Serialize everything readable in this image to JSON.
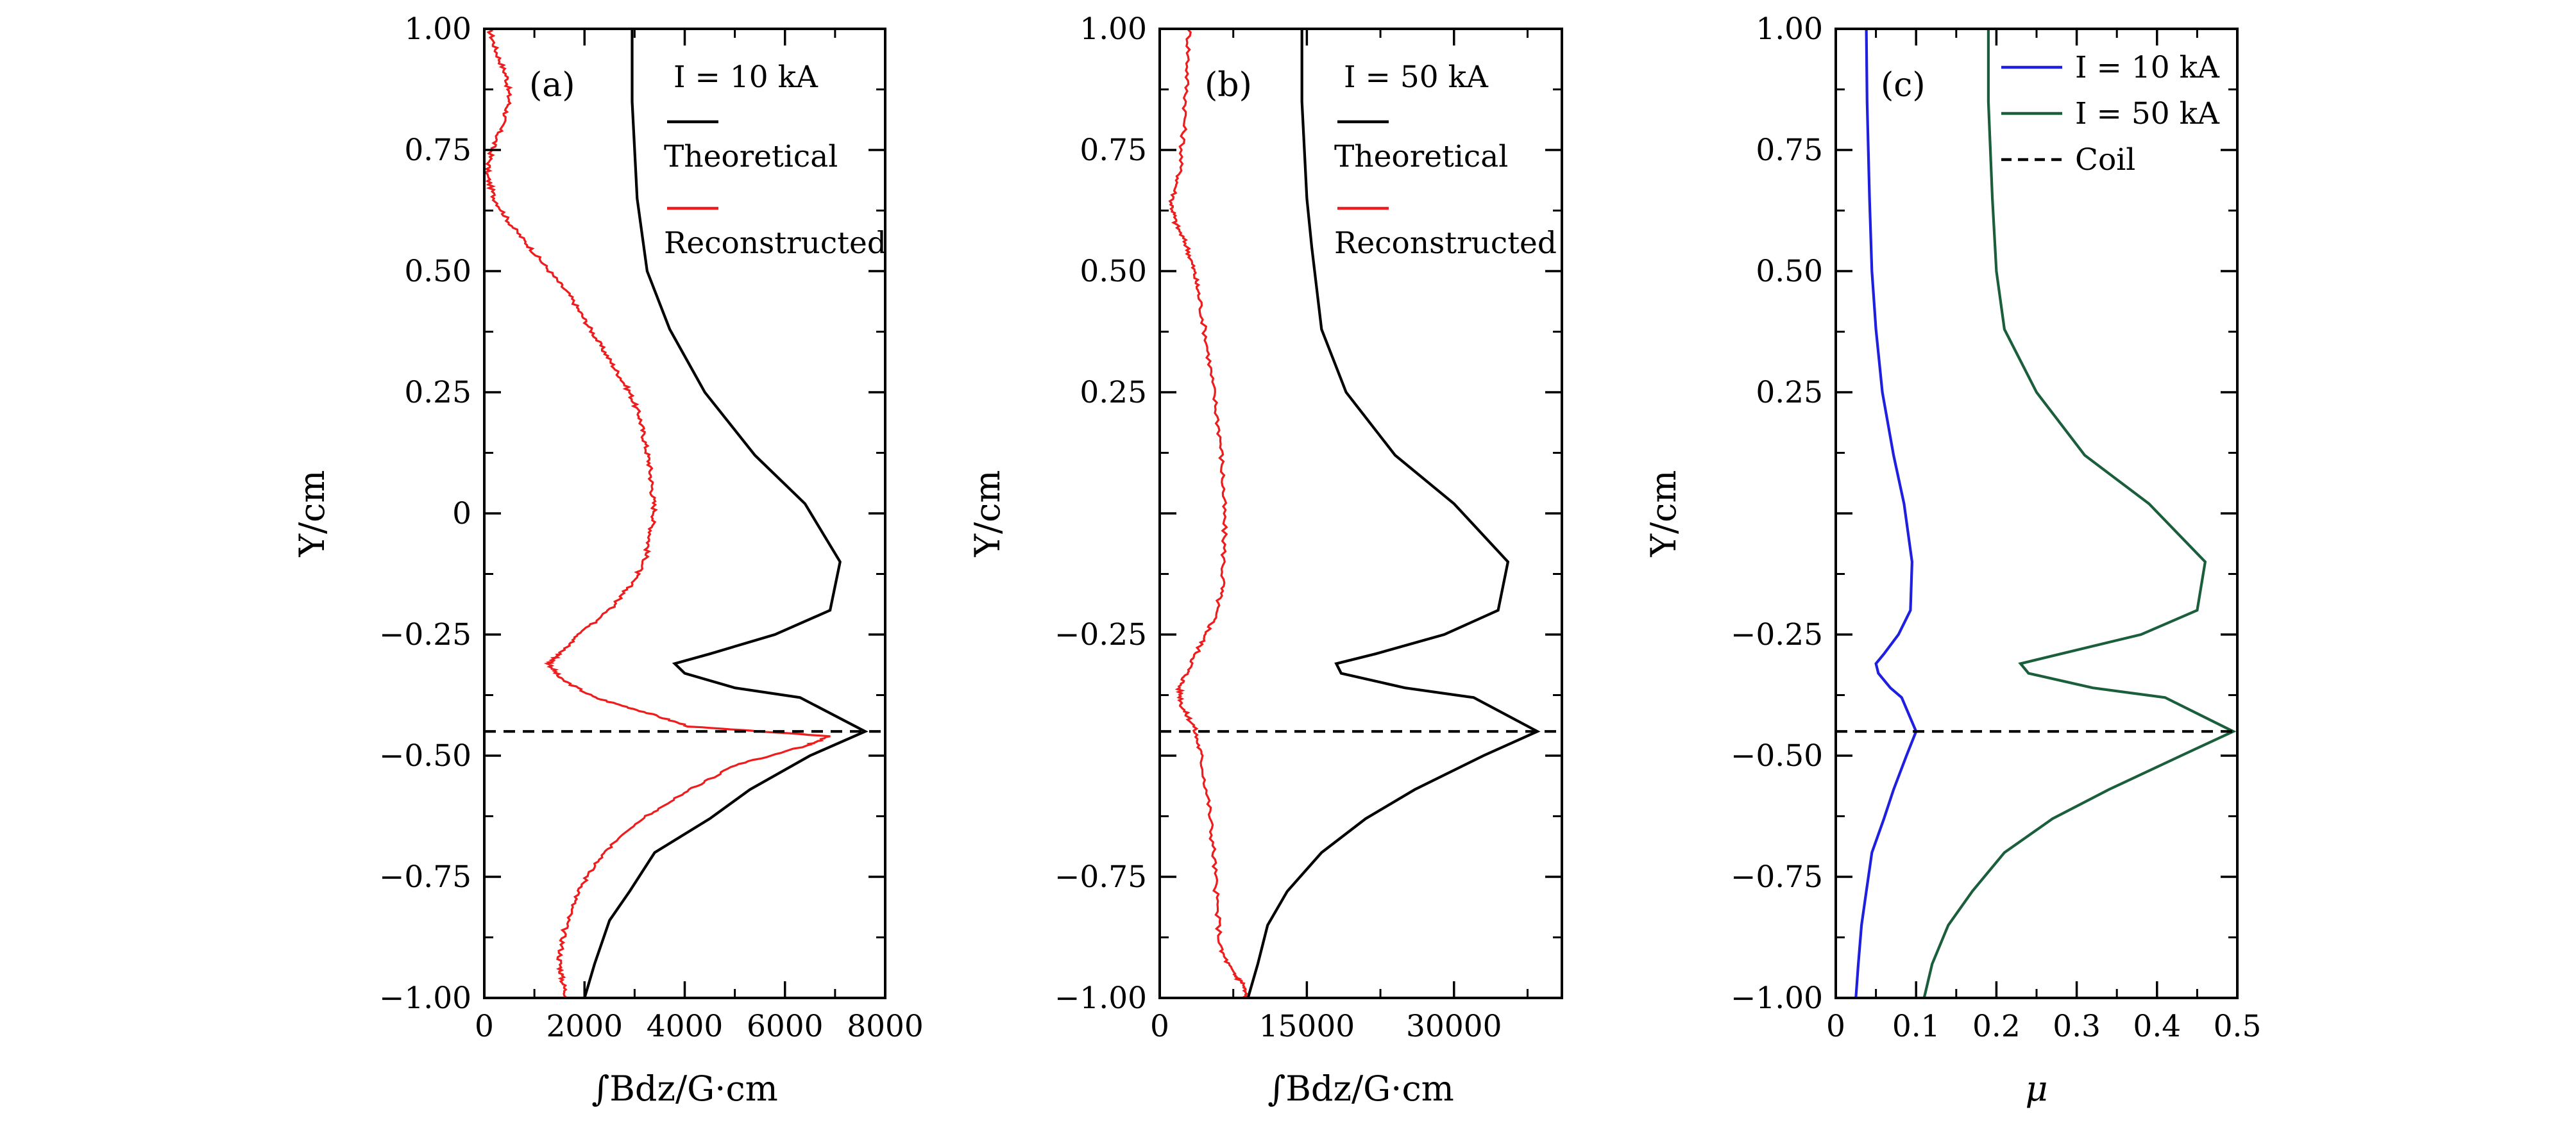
{
  "chart_data": [
    {
      "type": "line",
      "panel_label": "(a)",
      "xlabel": "∫Bdz/G·cm",
      "ylabel": "Y/cm",
      "xlim": [
        0,
        8000
      ],
      "ylim": [
        -1.0,
        1.0
      ],
      "xticks": [
        0,
        2000,
        4000,
        6000,
        8000
      ],
      "xtick_labels": [
        "0",
        "2000",
        "4000",
        "6000",
        "8000"
      ],
      "yticks": [
        -1.0,
        -0.75,
        -0.5,
        -0.25,
        0,
        0.25,
        0.5,
        0.75,
        1.0
      ],
      "ytick_labels": [
        "−1.00",
        "−0.75",
        "−0.50",
        "−0.25",
        "0",
        "0.25",
        "0.50",
        "0.75",
        "1.00"
      ],
      "legend_title": "I = 10 kA",
      "legend_position": "top-right",
      "grid": false,
      "series": [
        {
          "name": "Theoretical",
          "color": "#000000",
          "dashed": false,
          "noisy": false,
          "points": [
            [
              2950,
              1.0
            ],
            [
              2950,
              0.85
            ],
            [
              3050,
              0.65
            ],
            [
              3250,
              0.5
            ],
            [
              3700,
              0.38
            ],
            [
              4400,
              0.25
            ],
            [
              5400,
              0.12
            ],
            [
              6400,
              0.02
            ],
            [
              7100,
              -0.1
            ],
            [
              6900,
              -0.2
            ],
            [
              5800,
              -0.25
            ],
            [
              4500,
              -0.29
            ],
            [
              3800,
              -0.31
            ],
            [
              4000,
              -0.33
            ],
            [
              5000,
              -0.36
            ],
            [
              6300,
              -0.38
            ],
            [
              7600,
              -0.45
            ],
            [
              6500,
              -0.5
            ],
            [
              5300,
              -0.57
            ],
            [
              4500,
              -0.63
            ],
            [
              3400,
              -0.7
            ],
            [
              2900,
              -0.78
            ],
            [
              2500,
              -0.84
            ],
            [
              2200,
              -0.93
            ],
            [
              2000,
              -1.0
            ]
          ]
        },
        {
          "name": "Reconstructed",
          "color": "#ee1c1c",
          "dashed": false,
          "noisy": true,
          "points": [
            [
              100,
              1.0
            ],
            [
              250,
              0.95
            ],
            [
              450,
              0.9
            ],
            [
              500,
              0.85
            ],
            [
              350,
              0.8
            ],
            [
              150,
              0.75
            ],
            [
              50,
              0.7
            ],
            [
              200,
              0.65
            ],
            [
              500,
              0.6
            ],
            [
              900,
              0.55
            ],
            [
              1300,
              0.5
            ],
            [
              1700,
              0.45
            ],
            [
              2000,
              0.4
            ],
            [
              2300,
              0.35
            ],
            [
              2600,
              0.3
            ],
            [
              2900,
              0.25
            ],
            [
              3100,
              0.2
            ],
            [
              3200,
              0.15
            ],
            [
              3300,
              0.1
            ],
            [
              3350,
              0.05
            ],
            [
              3400,
              0
            ],
            [
              3300,
              -0.05
            ],
            [
              3200,
              -0.1
            ],
            [
              2900,
              -0.15
            ],
            [
              2500,
              -0.2
            ],
            [
              1900,
              -0.25
            ],
            [
              1500,
              -0.29
            ],
            [
              1300,
              -0.31
            ],
            [
              1500,
              -0.34
            ],
            [
              2200,
              -0.38
            ],
            [
              3200,
              -0.41
            ],
            [
              4100,
              -0.44
            ],
            [
              6900,
              -0.46
            ],
            [
              6400,
              -0.48
            ],
            [
              5000,
              -0.52
            ],
            [
              4100,
              -0.57
            ],
            [
              3300,
              -0.62
            ],
            [
              2600,
              -0.68
            ],
            [
              2100,
              -0.74
            ],
            [
              1800,
              -0.8
            ],
            [
              1600,
              -0.86
            ],
            [
              1500,
              -0.92
            ],
            [
              1550,
              -0.96
            ],
            [
              1650,
              -1.0
            ]
          ]
        },
        {
          "name": "Coil",
          "color": "#000000",
          "dashed": true,
          "noisy": false,
          "points": [
            [
              0,
              -0.45
            ],
            [
              8000,
              -0.45
            ]
          ]
        }
      ]
    },
    {
      "type": "line",
      "panel_label": "(b)",
      "xlabel": "∫Bdz/G·cm",
      "ylabel": "Y/cm",
      "xlim": [
        0,
        41000
      ],
      "ylim": [
        -1.0,
        1.0
      ],
      "xticks": [
        0,
        15000,
        30000
      ],
      "xtick_labels": [
        "0",
        "15000",
        "30000"
      ],
      "yticks": [
        -1.0,
        -0.75,
        -0.5,
        -0.25,
        0,
        0.25,
        0.5,
        0.75,
        1.0
      ],
      "ytick_labels": [
        "−1.00",
        "−0.75",
        "",
        "−0.25",
        "",
        "0.25",
        "0.50",
        "0.75",
        "1.00"
      ],
      "legend_title": "I = 50 kA",
      "legend_position": "top-right",
      "grid": false,
      "series": [
        {
          "name": "Theoretical",
          "color": "#000000",
          "dashed": false,
          "noisy": false,
          "points": [
            [
              14500,
              1.0
            ],
            [
              14500,
              0.85
            ],
            [
              15000,
              0.65
            ],
            [
              15500,
              0.55
            ],
            [
              16500,
              0.38
            ],
            [
              19000,
              0.25
            ],
            [
              24000,
              0.12
            ],
            [
              30000,
              0.02
            ],
            [
              35500,
              -0.1
            ],
            [
              34500,
              -0.2
            ],
            [
              29000,
              -0.25
            ],
            [
              22000,
              -0.29
            ],
            [
              18000,
              -0.31
            ],
            [
              18500,
              -0.33
            ],
            [
              25000,
              -0.36
            ],
            [
              32000,
              -0.38
            ],
            [
              38500,
              -0.45
            ],
            [
              33000,
              -0.5
            ],
            [
              26000,
              -0.57
            ],
            [
              21000,
              -0.63
            ],
            [
              16500,
              -0.7
            ],
            [
              13000,
              -0.78
            ],
            [
              11000,
              -0.85
            ],
            [
              10000,
              -0.93
            ],
            [
              9000,
              -1.0
            ]
          ]
        },
        {
          "name": "Reconstructed",
          "color": "#ee1c1c",
          "dashed": false,
          "noisy": true,
          "points": [
            [
              3000,
              1.0
            ],
            [
              2800,
              0.9
            ],
            [
              2500,
              0.8
            ],
            [
              2000,
              0.7
            ],
            [
              1200,
              0.64
            ],
            [
              1600,
              0.6
            ],
            [
              2800,
              0.55
            ],
            [
              3500,
              0.5
            ],
            [
              4000,
              0.45
            ],
            [
              4800,
              0.35
            ],
            [
              5500,
              0.25
            ],
            [
              6200,
              0.15
            ],
            [
              6500,
              0.05
            ],
            [
              6600,
              -0.05
            ],
            [
              6400,
              -0.15
            ],
            [
              5500,
              -0.22
            ],
            [
              4200,
              -0.27
            ],
            [
              3000,
              -0.32
            ],
            [
              2000,
              -0.36
            ],
            [
              2300,
              -0.4
            ],
            [
              3500,
              -0.44
            ],
            [
              4200,
              -0.5
            ],
            [
              5000,
              -0.6
            ],
            [
              5500,
              -0.7
            ],
            [
              5800,
              -0.8
            ],
            [
              6200,
              -0.9
            ],
            [
              7500,
              -0.95
            ],
            [
              8500,
              -0.97
            ],
            [
              8800,
              -1.0
            ]
          ]
        },
        {
          "name": "Coil",
          "color": "#000000",
          "dashed": true,
          "noisy": false,
          "points": [
            [
              0,
              -0.45
            ],
            [
              41000,
              -0.45
            ]
          ]
        }
      ]
    },
    {
      "type": "line",
      "panel_label": "(c)",
      "xlabel": "μ",
      "ylabel": "Y/cm",
      "xlim": [
        0,
        0.5
      ],
      "ylim": [
        -1.0,
        1.0
      ],
      "xticks": [
        0,
        0.1,
        0.2,
        0.3,
        0.4,
        0.5
      ],
      "xtick_labels": [
        "0",
        "0.1",
        "0.2",
        "0.3",
        "0.4",
        "0.5"
      ],
      "yticks": [
        -1.0,
        -0.75,
        -0.5,
        -0.25,
        0,
        0.25,
        0.5,
        0.75,
        1.0
      ],
      "ytick_labels": [
        "−1.00",
        "−0.75",
        "−0.50",
        "−0.25",
        "",
        "0.25",
        "0.50",
        "0.75",
        "1.00"
      ],
      "legend_position": "top-right",
      "grid": false,
      "series": [
        {
          "name": "I = 10 kA",
          "color": "#1f1fe0",
          "dashed": false,
          "noisy": false,
          "points": [
            [
              0.038,
              1.0
            ],
            [
              0.039,
              0.85
            ],
            [
              0.042,
              0.65
            ],
            [
              0.045,
              0.5
            ],
            [
              0.05,
              0.38
            ],
            [
              0.058,
              0.25
            ],
            [
              0.072,
              0.12
            ],
            [
              0.085,
              0.02
            ],
            [
              0.095,
              -0.1
            ],
            [
              0.093,
              -0.2
            ],
            [
              0.078,
              -0.25
            ],
            [
              0.06,
              -0.29
            ],
            [
              0.05,
              -0.31
            ],
            [
              0.053,
              -0.33
            ],
            [
              0.068,
              -0.36
            ],
            [
              0.082,
              -0.38
            ],
            [
              0.1,
              -0.45
            ],
            [
              0.088,
              -0.5
            ],
            [
              0.072,
              -0.57
            ],
            [
              0.06,
              -0.63
            ],
            [
              0.045,
              -0.7
            ],
            [
              0.038,
              -0.78
            ],
            [
              0.032,
              -0.85
            ],
            [
              0.028,
              -0.93
            ],
            [
              0.025,
              -1.0
            ]
          ]
        },
        {
          "name": "I = 50 kA",
          "color": "#1b5e3b",
          "dashed": false,
          "noisy": false,
          "points": [
            [
              0.19,
              1.0
            ],
            [
              0.19,
              0.85
            ],
            [
              0.195,
              0.65
            ],
            [
              0.2,
              0.5
            ],
            [
              0.21,
              0.38
            ],
            [
              0.25,
              0.25
            ],
            [
              0.31,
              0.12
            ],
            [
              0.39,
              0.02
            ],
            [
              0.46,
              -0.1
            ],
            [
              0.45,
              -0.2
            ],
            [
              0.38,
              -0.25
            ],
            [
              0.28,
              -0.29
            ],
            [
              0.23,
              -0.31
            ],
            [
              0.24,
              -0.33
            ],
            [
              0.32,
              -0.36
            ],
            [
              0.41,
              -0.38
            ],
            [
              0.495,
              -0.45
            ],
            [
              0.43,
              -0.5
            ],
            [
              0.34,
              -0.57
            ],
            [
              0.27,
              -0.63
            ],
            [
              0.21,
              -0.7
            ],
            [
              0.17,
              -0.78
            ],
            [
              0.14,
              -0.85
            ],
            [
              0.12,
              -0.93
            ],
            [
              0.11,
              -1.0
            ]
          ]
        },
        {
          "name": "Coil",
          "color": "#000000",
          "dashed": true,
          "noisy": false,
          "points": [
            [
              0,
              -0.45
            ],
            [
              0.5,
              -0.45
            ]
          ]
        }
      ]
    }
  ]
}
